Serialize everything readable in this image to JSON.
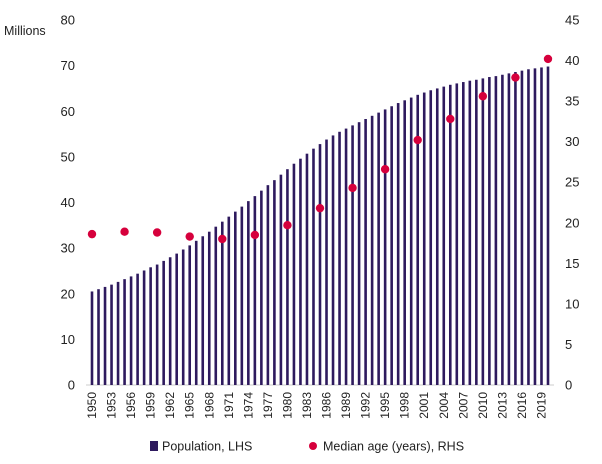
{
  "chart_data": {
    "type": "bar",
    "ylabel": "Millions",
    "ylim": [
      0,
      80
    ],
    "y2lim": [
      0,
      45
    ],
    "yticks": [
      0,
      10,
      20,
      30,
      40,
      50,
      60,
      70,
      80
    ],
    "y2ticks": [
      0,
      5,
      10,
      15,
      20,
      25,
      30,
      35,
      40,
      45
    ],
    "xtick_labels": [
      "1950",
      "1953",
      "1956",
      "1959",
      "1962",
      "1965",
      "1968",
      "1971",
      "1974",
      "1977",
      "1980",
      "1983",
      "1986",
      "1989",
      "1992",
      "1995",
      "1998",
      "2001",
      "2004",
      "2007",
      "2010",
      "2013",
      "2016",
      "2019"
    ],
    "legend_position": "bottom",
    "series": [
      {
        "name": "Population, LHS",
        "type": "bar",
        "axis": "left",
        "color": "#2e1a5e",
        "x": [
          1950,
          1951,
          1952,
          1953,
          1954,
          1955,
          1956,
          1957,
          1958,
          1959,
          1960,
          1961,
          1962,
          1963,
          1964,
          1965,
          1966,
          1967,
          1968,
          1969,
          1970,
          1971,
          1972,
          1973,
          1974,
          1975,
          1976,
          1977,
          1978,
          1979,
          1980,
          1981,
          1982,
          1983,
          1984,
          1985,
          1986,
          1987,
          1988,
          1989,
          1990,
          1991,
          1992,
          1993,
          1994,
          1995,
          1996,
          1997,
          1998,
          1999,
          2000,
          2001,
          2002,
          2003,
          2004,
          2005,
          2006,
          2007,
          2008,
          2009,
          2010,
          2011,
          2012,
          2013,
          2014,
          2015,
          2016,
          2017,
          2018,
          2019,
          2020
        ],
        "values": [
          20.5,
          21.0,
          21.5,
          22.0,
          22.6,
          23.2,
          23.8,
          24.4,
          25.1,
          25.8,
          26.4,
          27.2,
          28.0,
          28.8,
          29.7,
          30.6,
          31.6,
          32.6,
          33.6,
          34.7,
          35.8,
          36.9,
          38.0,
          39.1,
          40.3,
          41.4,
          42.6,
          43.8,
          44.9,
          46.1,
          47.3,
          48.5,
          49.6,
          50.7,
          51.8,
          52.8,
          53.8,
          54.7,
          55.5,
          56.2,
          56.9,
          57.6,
          58.3,
          59.0,
          59.7,
          60.4,
          61.1,
          61.8,
          62.4,
          63.0,
          63.6,
          64.1,
          64.6,
          65.0,
          65.4,
          65.8,
          66.1,
          66.4,
          66.7,
          66.9,
          67.2,
          67.5,
          67.7,
          68.0,
          68.3,
          68.6,
          68.9,
          69.2,
          69.4,
          69.6,
          69.8
        ]
      },
      {
        "name": "Median age (years), RHS",
        "type": "scatter",
        "axis": "right",
        "color": "#d6003c",
        "x": [
          1950,
          1955,
          1960,
          1965,
          1970,
          1975,
          1980,
          1985,
          1990,
          1995,
          2000,
          2005,
          2010,
          2015,
          2020
        ],
        "values": [
          18.6,
          18.9,
          18.8,
          18.3,
          18.0,
          18.5,
          19.7,
          21.8,
          24.3,
          26.6,
          30.2,
          32.8,
          35.6,
          37.9,
          40.2
        ]
      }
    ]
  }
}
